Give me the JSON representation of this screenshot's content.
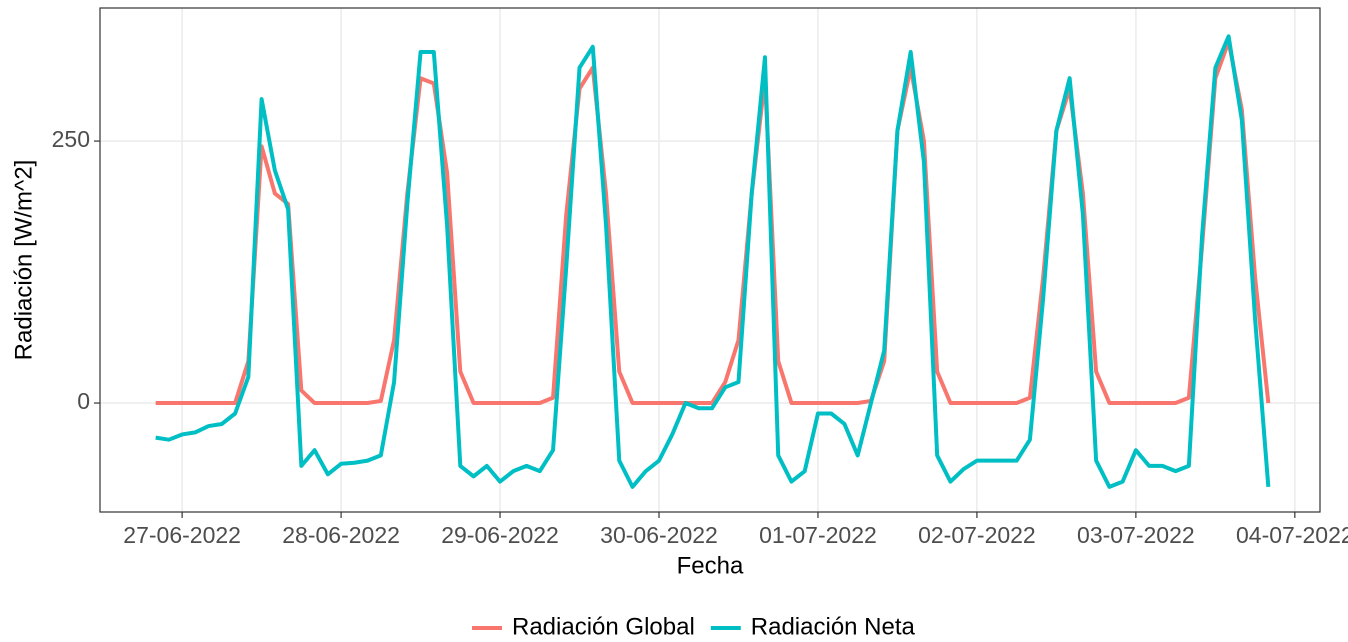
{
  "chart_data": {
    "type": "line",
    "x_label": "Fecha",
    "y_label": "Radiación [W/m^2]",
    "x": [
      -4,
      -2,
      0,
      2,
      4,
      6,
      8,
      10,
      12,
      14,
      16,
      18,
      20,
      22,
      24,
      26,
      28,
      30,
      32,
      34,
      36,
      38,
      40,
      42,
      44,
      46,
      48,
      50,
      52,
      54,
      56,
      58,
      60,
      62,
      64,
      66,
      68,
      70,
      72,
      74,
      76,
      78,
      80,
      82,
      84,
      86,
      88,
      90,
      92,
      94,
      96,
      98,
      100,
      102,
      104,
      106,
      108,
      110,
      112,
      114,
      116,
      118,
      120,
      122,
      124,
      126,
      128,
      130,
      132,
      134,
      136,
      138,
      140,
      142,
      144,
      146,
      148,
      150,
      152,
      154,
      156,
      158,
      160,
      162,
      164
    ],
    "series": [
      {
        "name": "Radiación Global",
        "color": "#F8766D",
        "values": [
          0,
          0,
          0,
          0,
          0,
          0,
          0,
          40,
          245,
          200,
          190,
          12,
          0,
          0,
          0,
          0,
          0,
          2,
          60,
          200,
          310,
          305,
          220,
          30,
          0,
          0,
          0,
          0,
          0,
          0,
          5,
          180,
          300,
          320,
          200,
          30,
          0,
          0,
          0,
          0,
          0,
          0,
          0,
          20,
          60,
          200,
          310,
          40,
          0,
          0,
          0,
          0,
          0,
          0,
          2,
          40,
          260,
          320,
          250,
          30,
          0,
          0,
          0,
          0,
          0,
          0,
          5,
          120,
          260,
          300,
          200,
          30,
          0,
          0,
          0,
          0,
          0,
          0,
          5,
          150,
          310,
          345,
          280,
          120,
          0
        ]
      },
      {
        "name": "Radiación Neta",
        "color": "#00BFC4",
        "values": [
          -33,
          -35,
          -30,
          -28,
          -22,
          -20,
          -10,
          25,
          290,
          222,
          185,
          -60,
          -45,
          -68,
          -58,
          -57,
          -55,
          -50,
          20,
          190,
          335,
          335,
          170,
          -60,
          -70,
          -60,
          -75,
          -65,
          -60,
          -65,
          -45,
          130,
          320,
          340,
          170,
          -55,
          -80,
          -65,
          -55,
          -30,
          0,
          -5,
          -5,
          15,
          20,
          200,
          330,
          -50,
          -75,
          -65,
          -10,
          -10,
          -20,
          -50,
          0,
          50,
          260,
          335,
          230,
          -50,
          -75,
          -63,
          -55,
          -55,
          -55,
          -55,
          -35,
          100,
          260,
          310,
          180,
          -55,
          -80,
          -75,
          -45,
          -60,
          -60,
          -65,
          -60,
          160,
          320,
          350,
          270,
          80,
          -80
        ]
      }
    ],
    "xlim": [
      -12.4,
      171.8
    ],
    "xticks": [
      {
        "value": 0,
        "label": "27-06-2022"
      },
      {
        "value": 24,
        "label": "28-06-2022"
      },
      {
        "value": 48,
        "label": "29-06-2022"
      },
      {
        "value": 72,
        "label": "30-06-2022"
      },
      {
        "value": 96,
        "label": "01-07-2022"
      },
      {
        "value": 120,
        "label": "02-07-2022"
      },
      {
        "value": 144,
        "label": "03-07-2022"
      },
      {
        "value": 168,
        "label": "04-07-2022"
      }
    ],
    "ylim": [
      -104,
      377
    ],
    "yticks": [
      0,
      250
    ],
    "grid": true,
    "legend": "bottom"
  }
}
